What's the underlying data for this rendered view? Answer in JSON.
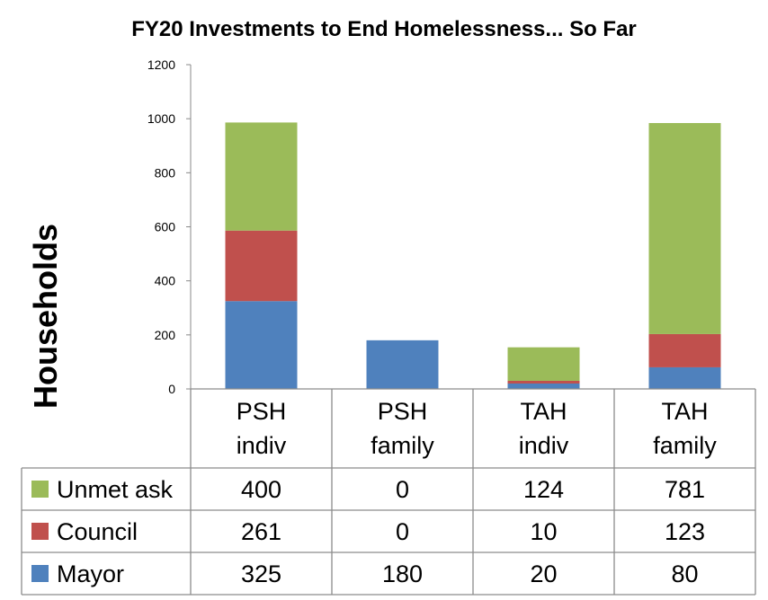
{
  "chart_data": {
    "type": "bar",
    "stacked": true,
    "title": "FY20 Investments to End Homelessness... So Far",
    "xlabel": "",
    "ylabel": "Households",
    "ylim": [
      0,
      1200
    ],
    "yticks": [
      0,
      200,
      400,
      600,
      800,
      1000,
      1200
    ],
    "categories": [
      [
        "PSH",
        "indiv"
      ],
      [
        "PSH",
        "family"
      ],
      [
        "TAH",
        "indiv"
      ],
      [
        "TAH",
        "family"
      ]
    ],
    "series": [
      {
        "name": "Mayor",
        "color": "#4F81BD",
        "values": [
          325,
          180,
          20,
          80
        ]
      },
      {
        "name": "Council",
        "color": "#C0504D",
        "values": [
          261,
          0,
          10,
          123
        ]
      },
      {
        "name": "Unmet ask",
        "color": "#9BBB59",
        "values": [
          400,
          0,
          124,
          781
        ]
      }
    ],
    "table_row_order": [
      "Unmet ask",
      "Council",
      "Mayor"
    ],
    "grid": false,
    "legend": "data-table"
  }
}
